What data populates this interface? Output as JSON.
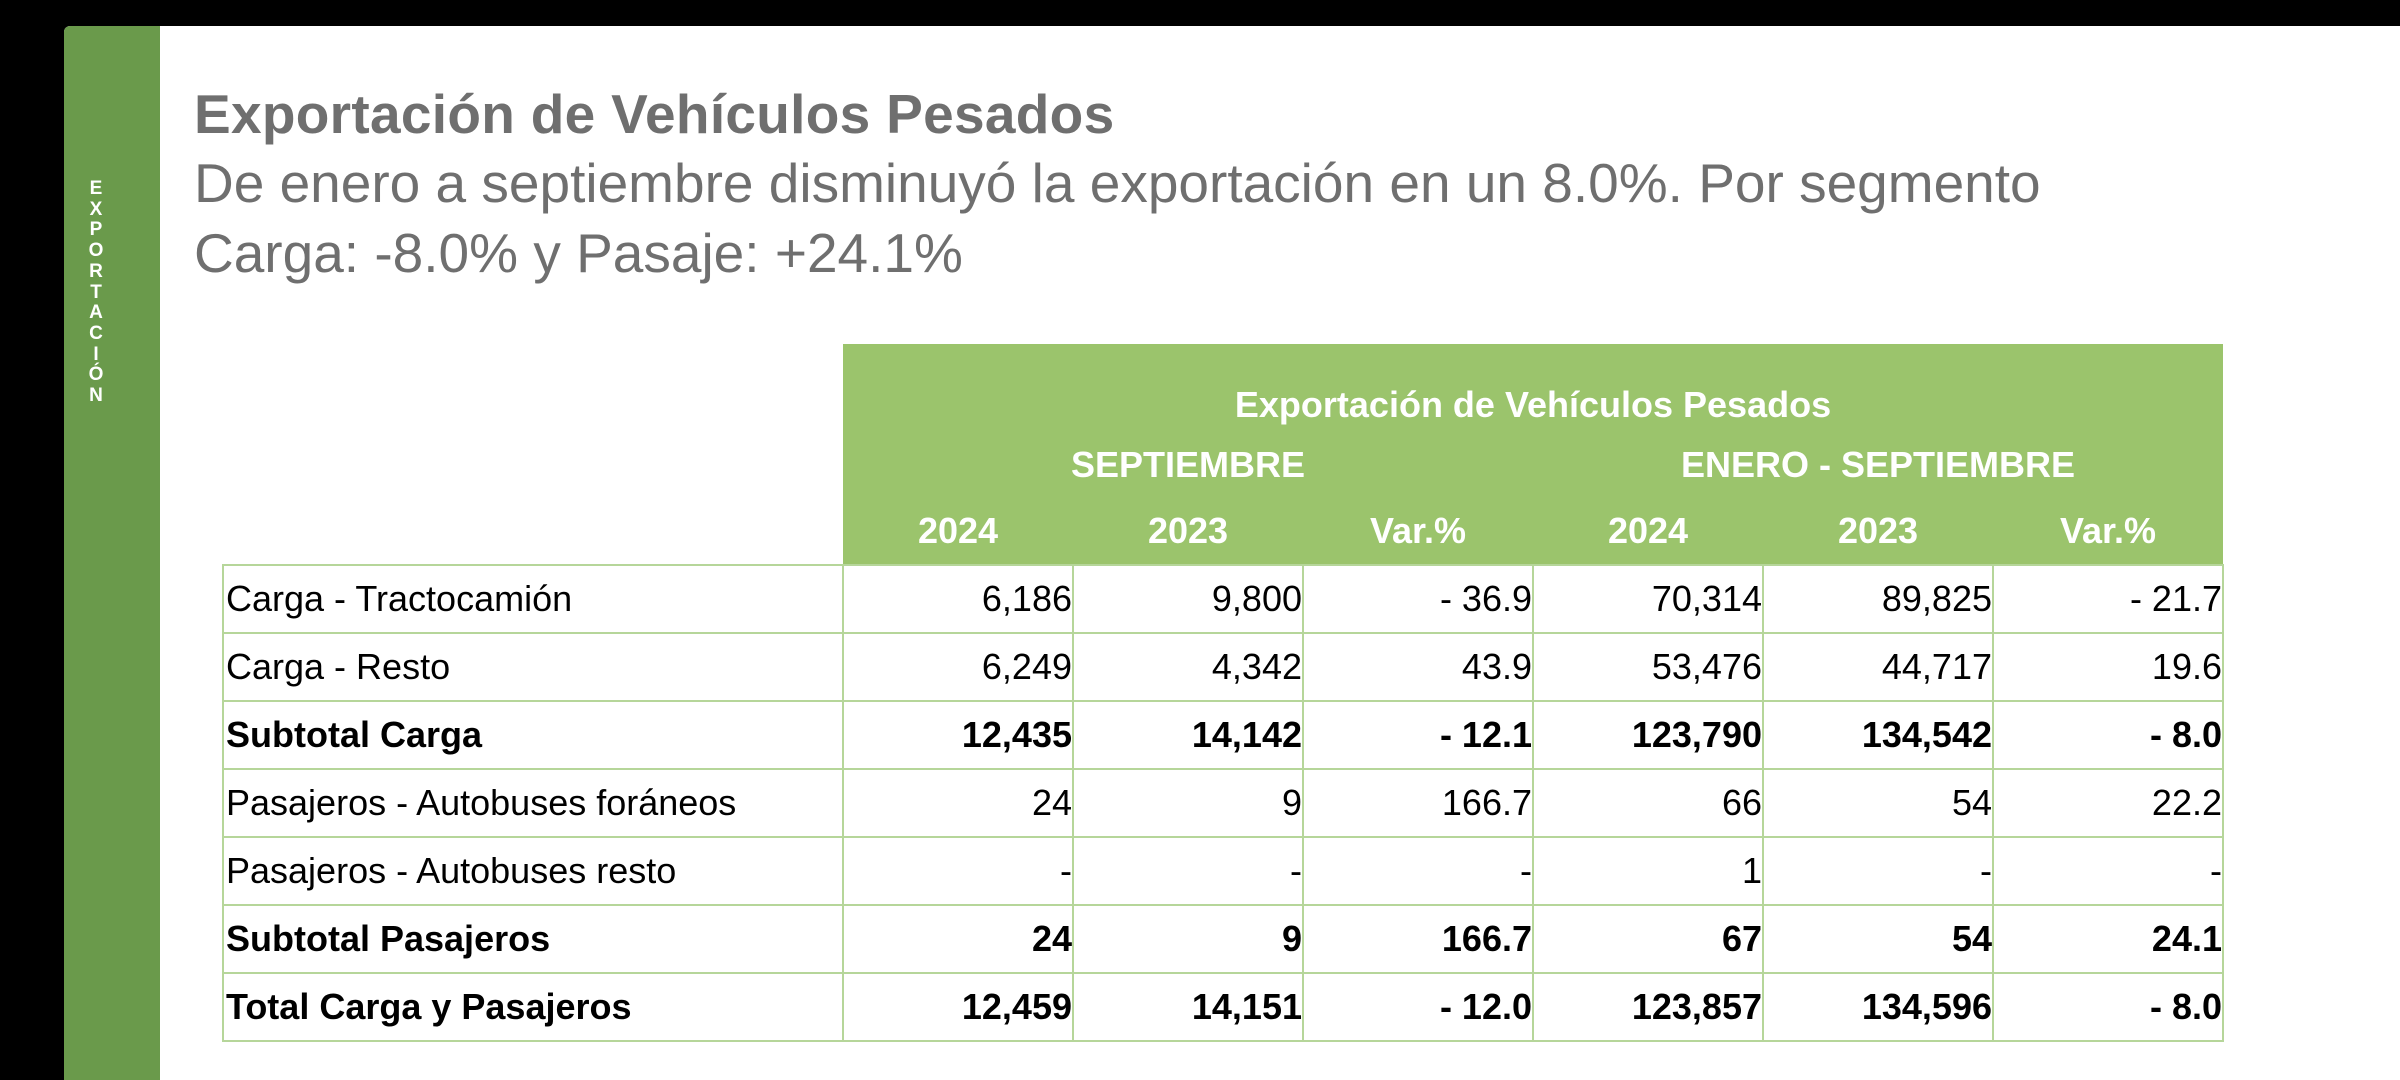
{
  "sidebar": {
    "letters": [
      "E",
      "X",
      "P",
      "O",
      "R",
      "T",
      "A",
      "C",
      "I",
      "Ó",
      "N"
    ]
  },
  "header": {
    "title": "Exportación de Vehículos Pesados",
    "subtitle": "De enero a septiembre disminuyó la exportación en un 8.0%. Por segmento Carga: -8.0% y Pasaje: +24.1%"
  },
  "table": {
    "title": "Exportación de Vehículos Pesados",
    "groups": [
      "SEPTIEMBRE",
      "ENERO - SEPTIEMBRE"
    ],
    "columns": [
      "2024",
      "2023",
      "Var.%",
      "2024",
      "2023",
      "Var.%"
    ],
    "rows": [
      {
        "label": "Carga - Tractocamión",
        "values": [
          "6,186",
          "9,800",
          "- 36.9",
          "70,314",
          "89,825",
          "- 21.7"
        ],
        "bold": false
      },
      {
        "label": "Carga - Resto",
        "values": [
          "6,249",
          "4,342",
          "43.9",
          "53,476",
          "44,717",
          "19.6"
        ],
        "bold": false
      },
      {
        "label": "Subtotal Carga",
        "values": [
          "12,435",
          "14,142",
          "- 12.1",
          "123,790",
          "134,542",
          "- 8.0"
        ],
        "bold": true
      },
      {
        "label": "Pasajeros - Autobuses foráneos",
        "values": [
          "24",
          "9",
          "166.7",
          "66",
          "54",
          "22.2"
        ],
        "bold": false
      },
      {
        "label": "Pasajeros - Autobuses resto",
        "values": [
          "-",
          "-",
          "-",
          "1",
          "-",
          "-"
        ],
        "bold": false
      },
      {
        "label": "Subtotal Pasajeros",
        "values": [
          "24",
          "9",
          "166.7",
          "67",
          "54",
          "24.1"
        ],
        "bold": true
      },
      {
        "label": "Total Carga y Pasajeros",
        "values": [
          "12,459",
          "14,151",
          "- 12.0",
          "123,857",
          "134,596",
          "- 8.0"
        ],
        "bold": true
      }
    ]
  },
  "colors": {
    "band": "#6a9a4b",
    "header": "#9bc46c",
    "title_text": "#6f6f6f",
    "grid": "#b6d69a"
  }
}
